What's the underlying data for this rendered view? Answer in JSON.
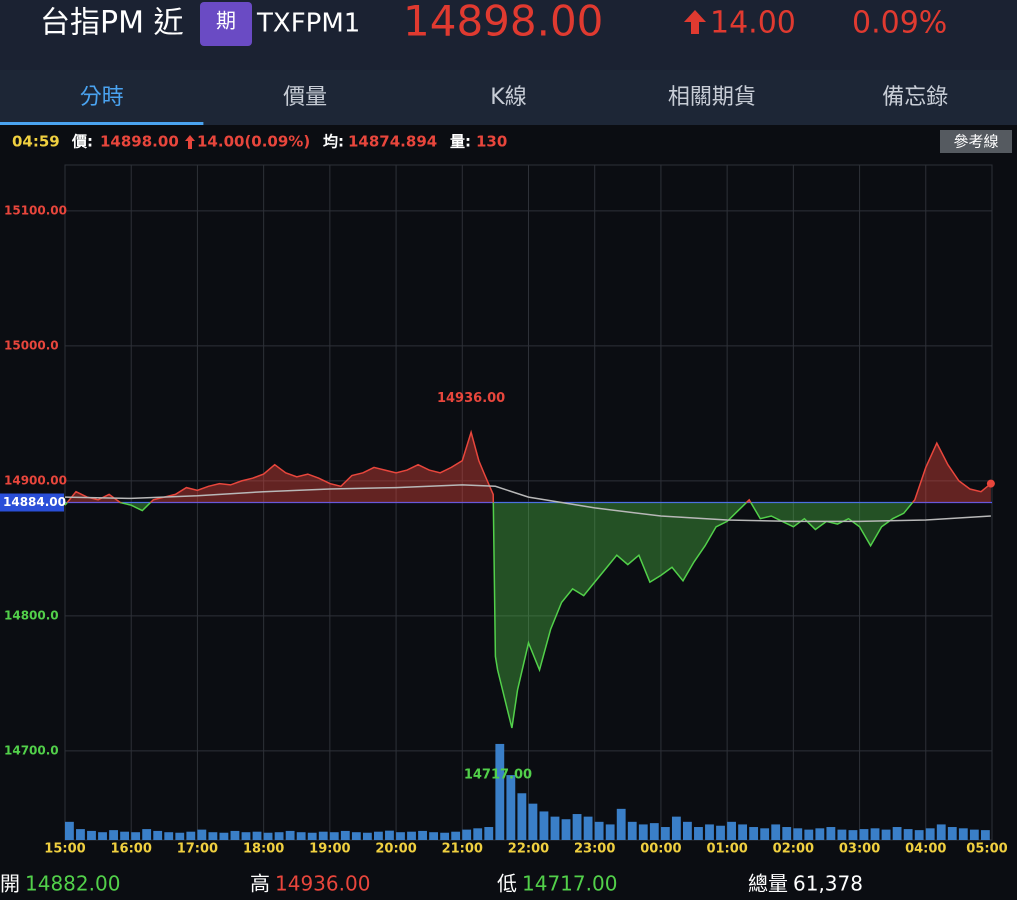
{
  "header": {
    "title": "台指PM 近",
    "badge": "期",
    "code": "TXFPM1",
    "price": "14898.00",
    "change": "14.00",
    "change_percent": "0.09%"
  },
  "tabs": [
    "分時",
    "價量",
    "K線",
    "相關期貨",
    "備忘錄"
  ],
  "active_tab": 0,
  "info": {
    "time": "04:59",
    "price_label": "價:",
    "price": "14898.00",
    "change": "14.00(0.09%)",
    "avg_label": "均:",
    "avg": "14874.894",
    "volume_label": "量:",
    "volume": "130",
    "button": "參考線"
  },
  "footer": [
    {
      "label": "開",
      "value": "14882.00"
    },
    {
      "label": "高",
      "value": "14936.00"
    },
    {
      "label": "低",
      "value": "14717.00"
    },
    {
      "label": "總量",
      "value": "61,378"
    }
  ],
  "chart_data": {
    "type": "line",
    "xlim": [
      0,
      840
    ],
    "xticks": [
      {
        "value": 0,
        "label": "15:00"
      },
      {
        "value": 60,
        "label": "16:00"
      },
      {
        "value": 120,
        "label": "17:00"
      },
      {
        "value": 180,
        "label": "18:00"
      },
      {
        "value": 240,
        "label": "19:00"
      },
      {
        "value": 300,
        "label": "20:00"
      },
      {
        "value": 360,
        "label": "21:00"
      },
      {
        "value": 420,
        "label": "22:00"
      },
      {
        "value": 480,
        "label": "23:00"
      },
      {
        "value": 540,
        "label": "00:00"
      },
      {
        "value": 600,
        "label": "01:00"
      },
      {
        "value": 660,
        "label": "02:00"
      },
      {
        "value": 720,
        "label": "03:00"
      },
      {
        "value": 780,
        "label": "04:00"
      },
      {
        "value": 840,
        "label": "05:00"
      }
    ],
    "ylim": [
      14634,
      15134
    ],
    "yticks": [
      {
        "value": 15100,
        "label": "15100.00"
      },
      {
        "value": 15000,
        "label": "15000.0"
      },
      {
        "value": 14900,
        "label": "14900.00"
      },
      {
        "value": 14800,
        "label": "14800.0"
      },
      {
        "value": 14700,
        "label": "14700.0"
      }
    ],
    "y2lim": [
      0,
      26000
    ],
    "reference": {
      "value": 14884,
      "label": "14884.00"
    },
    "up_color": "#e8463c",
    "down_color": "#52d04a",
    "annotations": [
      "14936.00",
      "14717.00"
    ],
    "series": [
      {
        "x": [
          0,
          10,
          20,
          30,
          40,
          50,
          60,
          70,
          80,
          90,
          100,
          110,
          120,
          130,
          140,
          150,
          160,
          170,
          180,
          190,
          200,
          210,
          220,
          230,
          240,
          250,
          260,
          270,
          280,
          290,
          300,
          310,
          320,
          330,
          340,
          350,
          360,
          368,
          375,
          380,
          388,
          390,
          392,
          405,
          410,
          420,
          430,
          440,
          450,
          460,
          470,
          480,
          490,
          500,
          510,
          520,
          530,
          540,
          550,
          560,
          570,
          580,
          590,
          600,
          610,
          620,
          630,
          640,
          650,
          660,
          670,
          680,
          690,
          700,
          710,
          720,
          730,
          740,
          750,
          760,
          770,
          780,
          790,
          800,
          810,
          820,
          830,
          839
        ],
        "values": [
          14882,
          14892,
          14888,
          14886,
          14890,
          14884,
          14882,
          14878,
          14886,
          14888,
          14890,
          14895,
          14893,
          14896,
          14898,
          14897,
          14900,
          14902,
          14905,
          14912,
          14906,
          14903,
          14905,
          14902,
          14898,
          14896,
          14904,
          14906,
          14910,
          14908,
          14906,
          14908,
          14912,
          14908,
          14906,
          14910,
          14915,
          14936,
          14915,
          14905,
          14890,
          14770,
          14760,
          14717,
          14745,
          14780,
          14760,
          14790,
          14810,
          14820,
          14815,
          14825,
          14835,
          14845,
          14838,
          14845,
          14825,
          14830,
          14836,
          14826,
          14840,
          14852,
          14866,
          14870,
          14878,
          14886,
          14872,
          14874,
          14870,
          14866,
          14872,
          14864,
          14870,
          14868,
          14872,
          14866,
          14852,
          14866,
          14872,
          14876,
          14886,
          14910,
          14928,
          14912,
          14900,
          14894,
          14892,
          14898
        ]
      },
      {
        "color": "#b8b8b8",
        "x": [
          0,
          60,
          120,
          180,
          240,
          300,
          360,
          390,
          420,
          480,
          540,
          600,
          660,
          720,
          780,
          839
        ],
        "values": [
          14888,
          14887,
          14889,
          14892,
          14894,
          14895,
          14897,
          14896,
          14888,
          14880,
          14874,
          14871,
          14870,
          14870,
          14871,
          14874
        ]
      },
      {
        "type": "bar",
        "axis": "y2",
        "color": "#3a7fc8",
        "x": [
          0,
          10,
          20,
          30,
          40,
          50,
          60,
          70,
          80,
          90,
          100,
          110,
          120,
          130,
          140,
          150,
          160,
          170,
          180,
          190,
          200,
          210,
          220,
          230,
          240,
          250,
          260,
          270,
          280,
          290,
          300,
          310,
          320,
          330,
          340,
          350,
          360,
          370,
          380,
          390,
          400,
          410,
          420,
          430,
          440,
          450,
          460,
          470,
          480,
          490,
          500,
          510,
          520,
          530,
          540,
          550,
          560,
          570,
          580,
          590,
          600,
          610,
          620,
          630,
          640,
          650,
          660,
          670,
          680,
          690,
          700,
          710,
          720,
          730,
          740,
          750,
          760,
          770,
          780,
          790,
          800,
          810,
          820,
          830
        ],
        "values": [
          700,
          420,
          350,
          300,
          380,
          320,
          300,
          420,
          350,
          300,
          280,
          320,
          400,
          300,
          280,
          350,
          300,
          320,
          280,
          300,
          350,
          300,
          280,
          320,
          300,
          350,
          300,
          280,
          320,
          360,
          300,
          320,
          350,
          300,
          280,
          320,
          400,
          450,
          500,
          3700,
          2500,
          1800,
          1400,
          1100,
          900,
          800,
          1000,
          900,
          700,
          600,
          1200,
          700,
          600,
          650,
          500,
          900,
          700,
          500,
          600,
          550,
          700,
          600,
          500,
          450,
          600,
          500,
          450,
          400,
          450,
          500,
          400,
          380,
          420,
          450,
          400,
          500,
          420,
          380,
          450,
          600,
          500,
          450,
          400,
          380
        ]
      }
    ]
  }
}
